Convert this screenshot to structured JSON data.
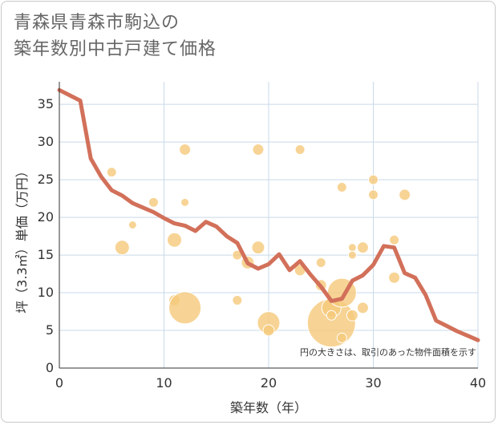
{
  "title_line1": "青森県青森市駒込の",
  "title_line2": "築年数別中古戸建て価格",
  "chart_data": {
    "type": "scatter",
    "xlabel": "築年数（年）",
    "ylabel": "坪（3.3㎡）単価（万円）",
    "note": "円の大きさは、取引のあった物件面積を示す",
    "xlim": [
      0,
      40
    ],
    "ylim": [
      0,
      38
    ],
    "xticks": [
      0,
      10,
      20,
      30,
      40
    ],
    "yticks": [
      0,
      5,
      10,
      15,
      20,
      25,
      30,
      35
    ],
    "grid": true,
    "colors": {
      "bubble": "#f5c97b",
      "line": "#d2705a",
      "grid": "#c9d9e8"
    },
    "bubbles": [
      {
        "x": 5,
        "y": 26,
        "r": 6
      },
      {
        "x": 6,
        "y": 16,
        "r": 9
      },
      {
        "x": 7,
        "y": 19,
        "r": 5
      },
      {
        "x": 9,
        "y": 22,
        "r": 6
      },
      {
        "x": 11,
        "y": 17,
        "r": 9
      },
      {
        "x": 11,
        "y": 9,
        "r": 7
      },
      {
        "x": 12,
        "y": 29,
        "r": 7
      },
      {
        "x": 12,
        "y": 22,
        "r": 5
      },
      {
        "x": 12,
        "y": 8,
        "r": 20
      },
      {
        "x": 17,
        "y": 15,
        "r": 6
      },
      {
        "x": 17,
        "y": 9,
        "r": 6
      },
      {
        "x": 18,
        "y": 14,
        "r": 8
      },
      {
        "x": 19,
        "y": 29,
        "r": 7
      },
      {
        "x": 19,
        "y": 16,
        "r": 8
      },
      {
        "x": 20,
        "y": 6,
        "r": 14
      },
      {
        "x": 20,
        "y": 5,
        "r": 7
      },
      {
        "x": 23,
        "y": 29,
        "r": 6
      },
      {
        "x": 23,
        "y": 13,
        "r": 7
      },
      {
        "x": 25,
        "y": 14,
        "r": 6
      },
      {
        "x": 25,
        "y": 11,
        "r": 7
      },
      {
        "x": 26,
        "y": 6,
        "r": 30
      },
      {
        "x": 26,
        "y": 8,
        "r": 12
      },
      {
        "x": 26,
        "y": 7,
        "r": 6
      },
      {
        "x": 27,
        "y": 10,
        "r": 18
      },
      {
        "x": 27,
        "y": 24,
        "r": 6
      },
      {
        "x": 27,
        "y": 4,
        "r": 6
      },
      {
        "x": 28,
        "y": 16,
        "r": 5
      },
      {
        "x": 28,
        "y": 15,
        "r": 5
      },
      {
        "x": 28,
        "y": 7,
        "r": 7
      },
      {
        "x": 29,
        "y": 16,
        "r": 7
      },
      {
        "x": 29,
        "y": 8,
        "r": 7
      },
      {
        "x": 30,
        "y": 25,
        "r": 6
      },
      {
        "x": 30,
        "y": 23,
        "r": 6
      },
      {
        "x": 32,
        "y": 17,
        "r": 6
      },
      {
        "x": 32,
        "y": 12,
        "r": 7
      },
      {
        "x": 33,
        "y": 23,
        "r": 7
      }
    ],
    "trend": [
      [
        0,
        36.9
      ],
      [
        1,
        36.2
      ],
      [
        2,
        35.5
      ],
      [
        3,
        27.8
      ],
      [
        4,
        25.4
      ],
      [
        5,
        23.6
      ],
      [
        6,
        22.9
      ],
      [
        7,
        21.9
      ],
      [
        8,
        21.3
      ],
      [
        9,
        20.7
      ],
      [
        10,
        19.9
      ],
      [
        11,
        19.2
      ],
      [
        12,
        18.9
      ],
      [
        13,
        18.2
      ],
      [
        14,
        19.4
      ],
      [
        15,
        18.8
      ],
      [
        16,
        17.5
      ],
      [
        17,
        16.6
      ],
      [
        18,
        13.9
      ],
      [
        19,
        13.2
      ],
      [
        20,
        13.8
      ],
      [
        21,
        15.1
      ],
      [
        22,
        13.0
      ],
      [
        23,
        14.2
      ],
      [
        24,
        12.4
      ],
      [
        25,
        10.8
      ],
      [
        26,
        8.9
      ],
      [
        27,
        9.2
      ],
      [
        28,
        11.6
      ],
      [
        29,
        12.3
      ],
      [
        30,
        13.7
      ],
      [
        31,
        16.2
      ],
      [
        32,
        16.0
      ],
      [
        33,
        12.6
      ],
      [
        34,
        12.0
      ],
      [
        35,
        9.7
      ],
      [
        36,
        6.3
      ],
      [
        37,
        5.6
      ],
      [
        38,
        4.9
      ],
      [
        39,
        4.3
      ],
      [
        40,
        3.7
      ]
    ]
  }
}
